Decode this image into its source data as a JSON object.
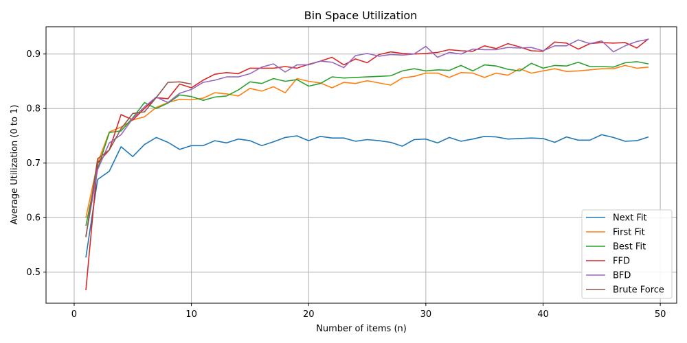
{
  "chart_data": {
    "type": "line",
    "title": "Bin Space Utilization",
    "xlabel": "Number of items (n)",
    "ylabel": "Average Utilization (0 to 1)",
    "xlim": [
      -2.4,
      51.4
    ],
    "ylim": [
      0.443,
      0.95
    ],
    "xticks": [
      0,
      10,
      20,
      30,
      40,
      50
    ],
    "yticks": [
      0.5,
      0.6,
      0.7,
      0.8,
      0.9
    ],
    "grid": true,
    "legend_position": "lower-right",
    "series": [
      {
        "name": "Next Fit",
        "color": "#1f77b4",
        "x": [
          1,
          2,
          3,
          4,
          5,
          6,
          7,
          8,
          9,
          10,
          11,
          12,
          13,
          14,
          15,
          16,
          17,
          18,
          19,
          20,
          21,
          22,
          23,
          24,
          25,
          26,
          27,
          28,
          29,
          30,
          31,
          32,
          33,
          34,
          35,
          36,
          37,
          38,
          39,
          40,
          41,
          42,
          43,
          44,
          45,
          46,
          47,
          48,
          49
        ],
        "y": [
          0.527,
          0.67,
          0.685,
          0.73,
          0.712,
          0.734,
          0.747,
          0.738,
          0.725,
          0.732,
          0.732,
          0.741,
          0.737,
          0.744,
          0.741,
          0.732,
          0.739,
          0.747,
          0.75,
          0.741,
          0.749,
          0.746,
          0.746,
          0.74,
          0.743,
          0.741,
          0.738,
          0.731,
          0.743,
          0.744,
          0.737,
          0.747,
          0.74,
          0.744,
          0.749,
          0.748,
          0.744,
          0.745,
          0.746,
          0.745,
          0.738,
          0.748,
          0.742,
          0.742,
          0.752,
          0.747,
          0.74,
          0.741,
          0.748
        ]
      },
      {
        "name": "First Fit",
        "color": "#ff7f0e",
        "x": [
          1,
          2,
          3,
          4,
          5,
          6,
          7,
          8,
          9,
          10,
          11,
          12,
          13,
          14,
          15,
          16,
          17,
          18,
          19,
          20,
          21,
          22,
          23,
          24,
          25,
          26,
          27,
          28,
          29,
          30,
          31,
          32,
          33,
          34,
          35,
          36,
          37,
          38,
          39,
          40,
          41,
          42,
          43,
          44,
          45,
          46,
          47,
          48,
          49
        ],
        "y": [
          0.6,
          0.7,
          0.757,
          0.766,
          0.779,
          0.785,
          0.802,
          0.811,
          0.817,
          0.816,
          0.819,
          0.829,
          0.827,
          0.823,
          0.837,
          0.832,
          0.84,
          0.829,
          0.855,
          0.85,
          0.847,
          0.838,
          0.848,
          0.846,
          0.851,
          0.847,
          0.843,
          0.856,
          0.859,
          0.865,
          0.865,
          0.857,
          0.866,
          0.865,
          0.857,
          0.865,
          0.861,
          0.873,
          0.865,
          0.869,
          0.873,
          0.868,
          0.869,
          0.871,
          0.873,
          0.873,
          0.879,
          0.874,
          0.876
        ]
      },
      {
        "name": "Best Fit",
        "color": "#2ca02c",
        "x": [
          1,
          2,
          3,
          4,
          5,
          6,
          7,
          8,
          9,
          10,
          11,
          12,
          13,
          14,
          15,
          16,
          17,
          18,
          19,
          20,
          21,
          22,
          23,
          24,
          25,
          26,
          27,
          28,
          29,
          30,
          31,
          32,
          33,
          34,
          35,
          36,
          37,
          38,
          39,
          40,
          41,
          42,
          43,
          44,
          45,
          46,
          47,
          48,
          49
        ],
        "y": [
          0.585,
          0.69,
          0.756,
          0.759,
          0.783,
          0.811,
          0.8,
          0.81,
          0.825,
          0.822,
          0.815,
          0.821,
          0.823,
          0.834,
          0.849,
          0.846,
          0.855,
          0.85,
          0.853,
          0.841,
          0.846,
          0.858,
          0.856,
          0.857,
          0.858,
          0.859,
          0.86,
          0.869,
          0.873,
          0.869,
          0.871,
          0.87,
          0.879,
          0.869,
          0.88,
          0.878,
          0.872,
          0.869,
          0.883,
          0.874,
          0.879,
          0.878,
          0.885,
          0.877,
          0.877,
          0.876,
          0.884,
          0.886,
          0.882
        ]
      },
      {
        "name": "FFD",
        "color": "#d62728",
        "x": [
          1,
          2,
          3,
          4,
          5,
          6,
          7,
          8,
          9,
          10,
          11,
          12,
          13,
          14,
          15,
          16,
          17,
          18,
          19,
          20,
          21,
          22,
          23,
          24,
          25,
          26,
          27,
          28,
          29,
          30,
          31,
          32,
          33,
          34,
          35,
          36,
          37,
          38,
          39,
          40,
          41,
          42,
          43,
          44,
          45,
          46,
          47,
          48,
          49
        ],
        "y": [
          0.467,
          0.7,
          0.724,
          0.789,
          0.779,
          0.8,
          0.82,
          0.818,
          0.845,
          0.838,
          0.852,
          0.863,
          0.866,
          0.864,
          0.874,
          0.874,
          0.874,
          0.877,
          0.874,
          0.881,
          0.887,
          0.894,
          0.88,
          0.891,
          0.884,
          0.899,
          0.904,
          0.901,
          0.9,
          0.901,
          0.903,
          0.908,
          0.906,
          0.905,
          0.915,
          0.91,
          0.919,
          0.913,
          0.906,
          0.905,
          0.922,
          0.92,
          0.909,
          0.919,
          0.921,
          0.92,
          0.921,
          0.911,
          0.928
        ]
      },
      {
        "name": "BFD",
        "color": "#9467bd",
        "x": [
          1,
          2,
          3,
          4,
          5,
          6,
          7,
          8,
          9,
          10,
          11,
          12,
          13,
          14,
          15,
          16,
          17,
          18,
          19,
          20,
          21,
          22,
          23,
          24,
          25,
          26,
          27,
          28,
          29,
          30,
          31,
          32,
          33,
          34,
          35,
          36,
          37,
          38,
          39,
          40,
          41,
          42,
          43,
          44,
          45,
          46,
          47,
          48,
          49
        ],
        "y": [
          0.566,
          0.688,
          0.737,
          0.752,
          0.782,
          0.803,
          0.821,
          0.811,
          0.828,
          0.835,
          0.848,
          0.852,
          0.858,
          0.858,
          0.864,
          0.876,
          0.882,
          0.867,
          0.88,
          0.88,
          0.887,
          0.885,
          0.875,
          0.897,
          0.901,
          0.896,
          0.899,
          0.898,
          0.9,
          0.914,
          0.894,
          0.903,
          0.9,
          0.909,
          0.908,
          0.908,
          0.912,
          0.911,
          0.912,
          0.906,
          0.915,
          0.915,
          0.926,
          0.919,
          0.924,
          0.904,
          0.915,
          0.923,
          0.927
        ]
      },
      {
        "name": "Brute Force",
        "color": "#8c564b",
        "x": [
          1,
          2,
          3,
          4,
          5,
          6,
          7,
          8,
          9,
          10
        ],
        "y": [
          0.564,
          0.708,
          0.724,
          0.763,
          0.791,
          0.794,
          0.82,
          0.848,
          0.849,
          0.845
        ]
      }
    ]
  }
}
